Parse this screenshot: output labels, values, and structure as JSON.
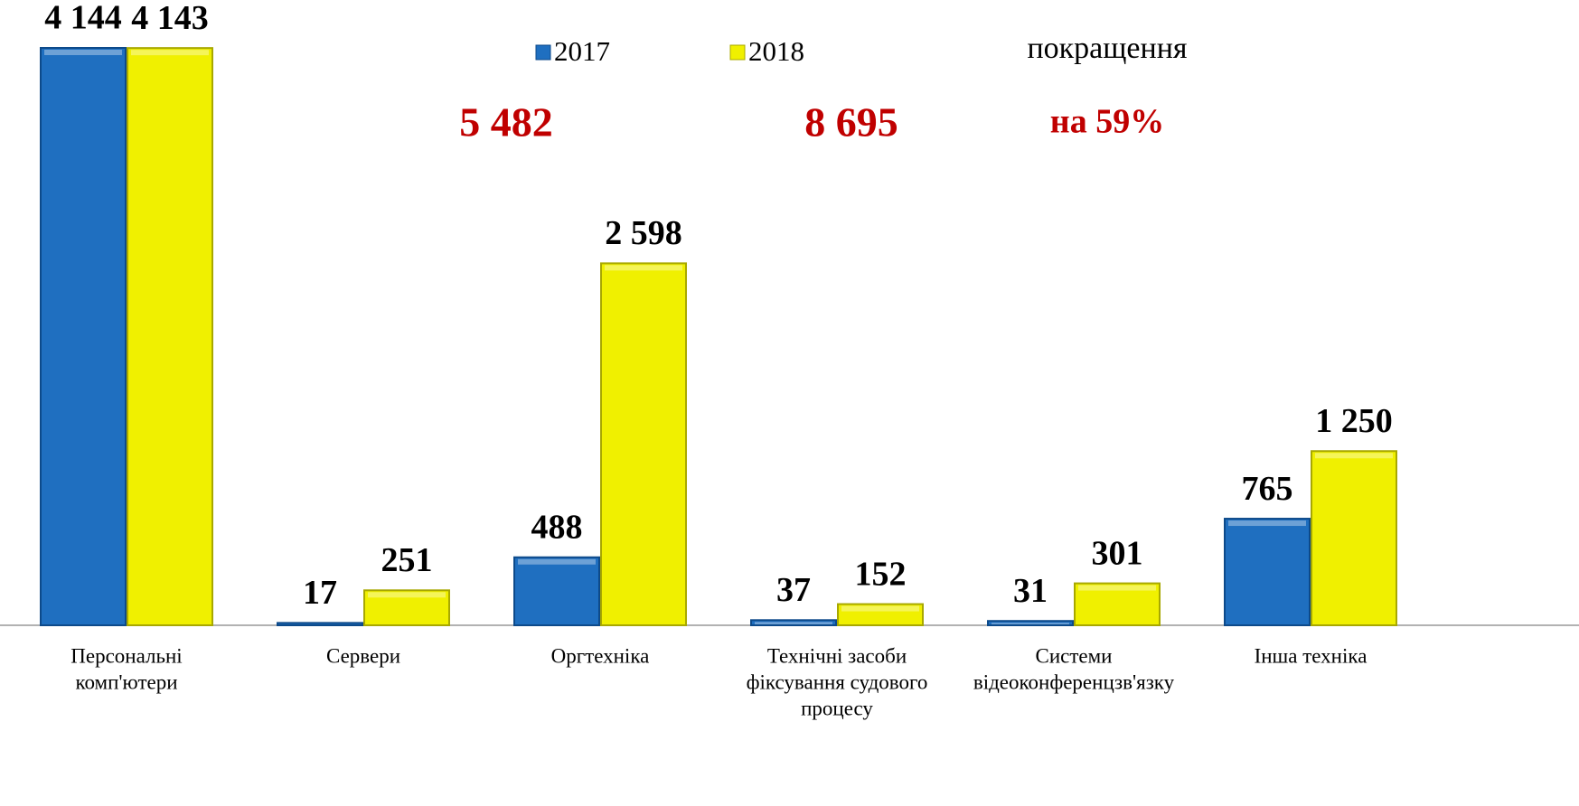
{
  "chart_data": {
    "type": "bar",
    "categories": [
      [
        "Персональні",
        "комп'ютери"
      ],
      [
        "Сервери"
      ],
      [
        "Оргтехніка"
      ],
      [
        "Технічні засоби",
        "фіксування судового",
        "процесу"
      ],
      [
        "Системи",
        "відеоконференцзв'язку"
      ],
      [
        "Інша техніка"
      ]
    ],
    "series": [
      {
        "name": "2017",
        "color": "#1f6fc0",
        "values": [
          4144,
          17,
          488,
          37,
          31,
          765
        ],
        "value_labels": [
          "4 144",
          "17",
          "488",
          "37",
          "31",
          "765"
        ]
      },
      {
        "name": "2018",
        "color": "#f0f000",
        "values": [
          4143,
          251,
          2598,
          152,
          301,
          1250
        ],
        "value_labels": [
          "4 143",
          "251",
          "2 598",
          "152",
          "301",
          "1 250"
        ]
      }
    ],
    "annotations": [
      "5 482",
      "8 695",
      "покращення",
      "на 59%"
    ]
  }
}
